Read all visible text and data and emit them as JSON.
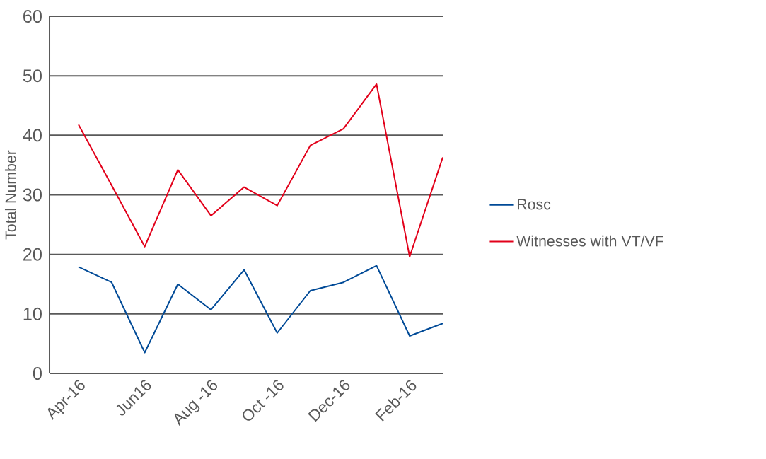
{
  "chart_data": {
    "type": "line",
    "ylabel": "Total Number",
    "categories": [
      "Apr-16",
      null,
      "Jun16",
      null,
      "Aug -16",
      null,
      "Oct -16",
      null,
      "Dec-16",
      null,
      "Feb-16",
      null
    ],
    "series": [
      {
        "name": "Rosc",
        "color": "#004a97",
        "values": [
          17.9,
          15.3,
          3.5,
          15.0,
          10.7,
          17.4,
          6.8,
          13.9,
          15.3,
          18.1,
          6.3,
          8.4
        ]
      },
      {
        "name": "Witnesses with VT/VF",
        "color": "#e2001a",
        "values": [
          41.8,
          31.6,
          21.3,
          34.2,
          26.5,
          31.3,
          28.2,
          38.3,
          41.1,
          48.6,
          19.6,
          36.3
        ]
      }
    ],
    "ylim": [
      0,
      60
    ],
    "yticks": [
      0,
      10,
      20,
      30,
      40,
      50,
      60
    ],
    "grid": "y",
    "legend": "right",
    "marker": "none",
    "line_style": "solid"
  }
}
